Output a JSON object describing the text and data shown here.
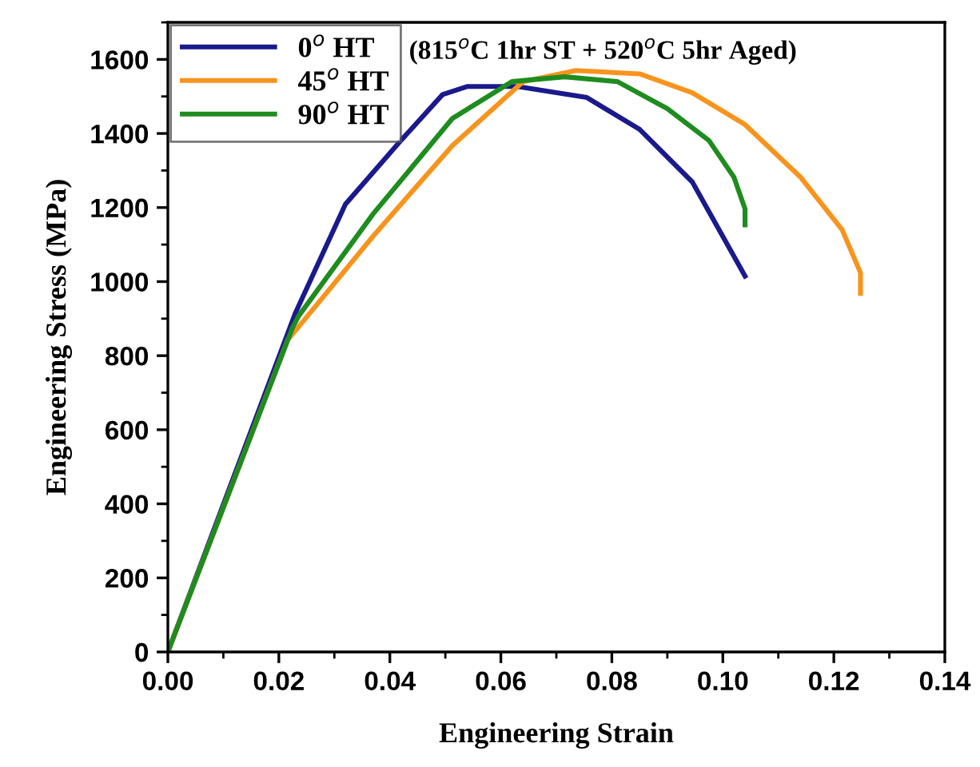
{
  "chart_data": {
    "type": "line",
    "xlabel": "Engineering Strain",
    "ylabel": "Engineering Stress (MPa)",
    "annotations": [
      "(815$^{o}$C 1hr ST + 520$^{o}$C 5hr Aged)"
    ],
    "xlim": [
      0,
      0.14
    ],
    "xticks": [
      {
        "value": 0,
        "label": "0.00"
      },
      {
        "value": 0.02,
        "label": "0.02"
      },
      {
        "value": 0.04,
        "label": "0.04"
      },
      {
        "value": 0.06,
        "label": "0.06"
      },
      {
        "value": 0.08,
        "label": "0.08"
      },
      {
        "value": 0.1,
        "label": "0.10"
      },
      {
        "value": 0.12,
        "label": "0.12"
      },
      {
        "value": 0.14,
        "label": "0.14"
      }
    ],
    "ylim": [
      0,
      1700
    ],
    "yticks": [
      0,
      200,
      400,
      600,
      800,
      1000,
      1200,
      1400,
      1600
    ],
    "grid": false,
    "legend": "top left",
    "marker": "none",
    "line_style": "solid",
    "series": [
      {
        "name": "0$^{o}$ HT",
        "color": "#1a1a8c",
        "x": [
          0,
          0.023,
          0.032,
          0.042,
          0.0495,
          0.054,
          0.063,
          0.0755,
          0.085,
          0.0945,
          0.104
        ],
        "values": [
          0,
          916,
          1209,
          1381,
          1505,
          1527,
          1527,
          1497,
          1411,
          1269,
          1015
        ]
      },
      {
        "name": "45$^{o}$ HT",
        "color": "#f7941d",
        "x": [
          0,
          0.0216,
          0.0245,
          0.037,
          0.0513,
          0.064,
          0.0735,
          0.085,
          0.0945,
          0.104,
          0.114,
          0.1215,
          0.1248,
          0.1248
        ],
        "values": [
          0,
          843,
          895,
          1123,
          1368,
          1540,
          1570,
          1561,
          1510,
          1424,
          1282,
          1140,
          1024,
          968
        ]
      },
      {
        "name": "90$^{o}$ HT",
        "color": "#1e8c1e",
        "x": [
          0,
          0.0225,
          0.0236,
          0.037,
          0.0513,
          0.062,
          0.0715,
          0.081,
          0.09,
          0.0975,
          0.102,
          0.104,
          0.104
        ],
        "values": [
          0,
          877,
          908,
          1183,
          1441,
          1540,
          1553,
          1540,
          1467,
          1381,
          1282,
          1196,
          1153
        ]
      }
    ]
  }
}
